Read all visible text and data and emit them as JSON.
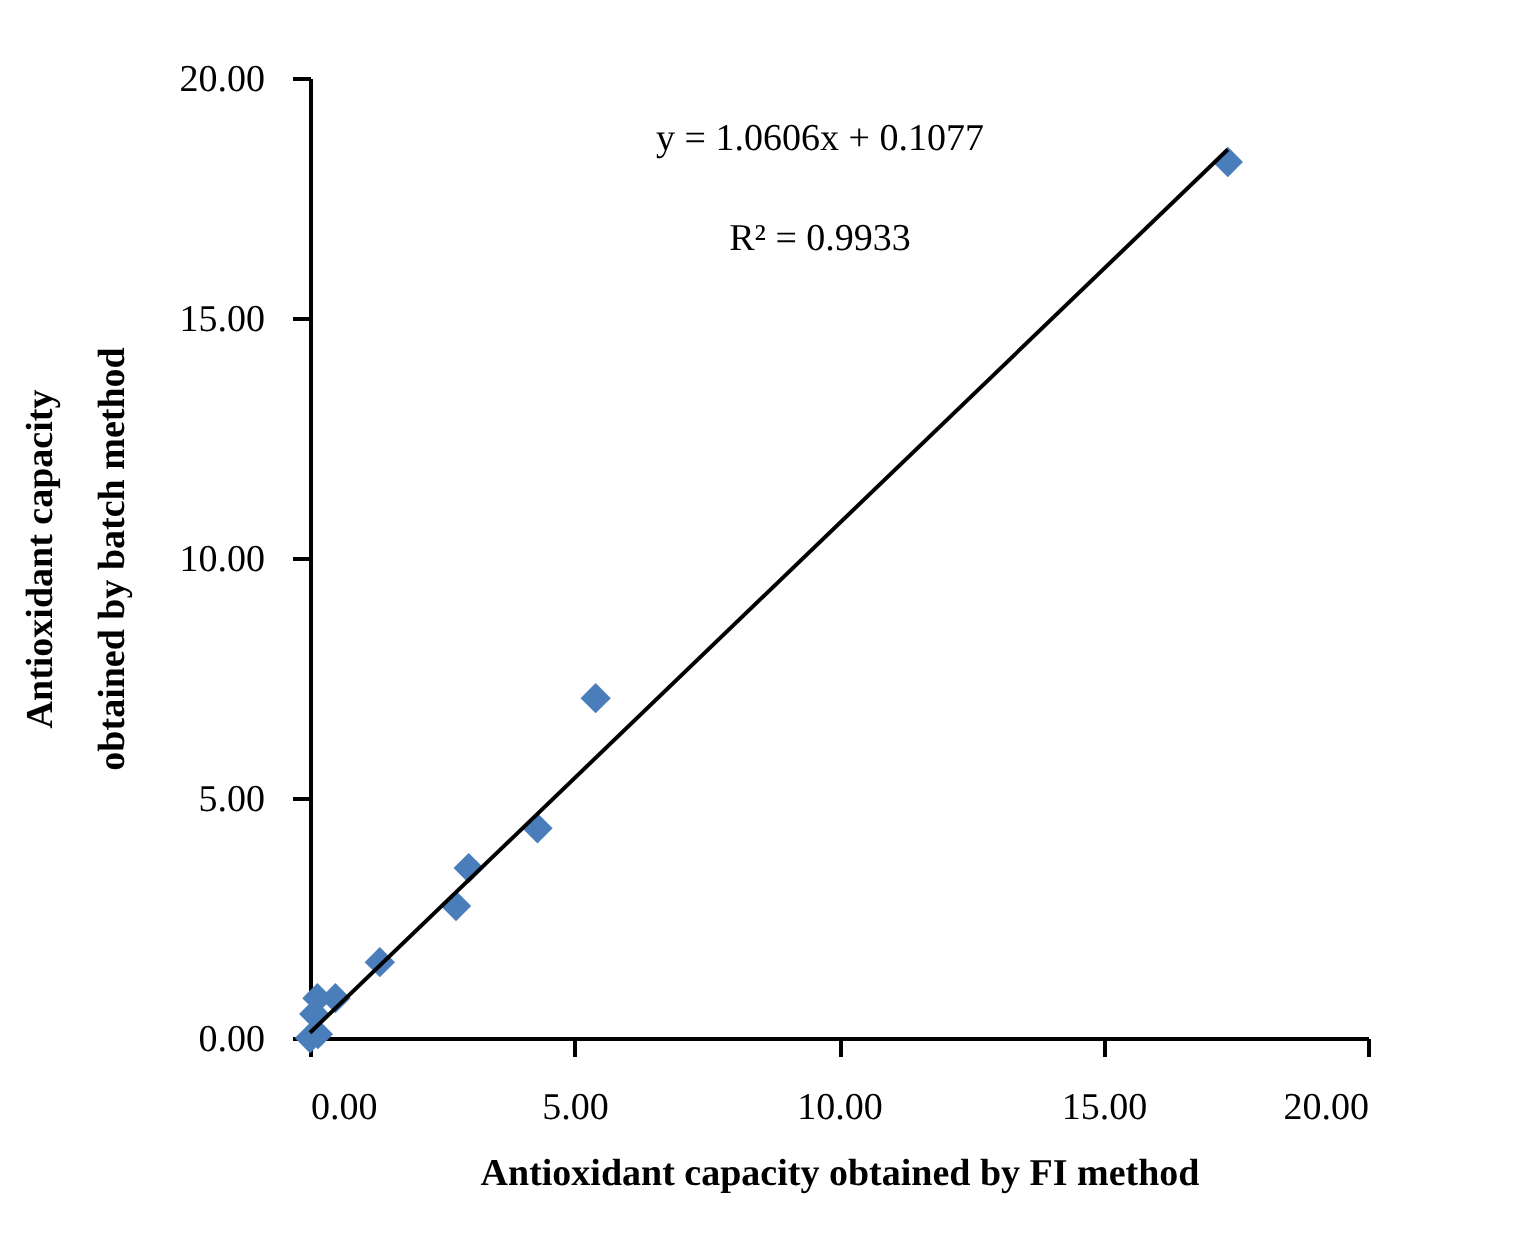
{
  "chart_data": {
    "type": "scatter",
    "xlabel": "Antioxidant capacity obtained by FI method",
    "ylabel": "Antioxidant capacity\nobtained by batch method",
    "annotations": [
      "y = 1.0606x + 0.1077",
      "R² = 0.9933"
    ],
    "xlim": [
      0,
      20
    ],
    "ylim": [
      0,
      20
    ],
    "xticks": [
      {
        "value": 0,
        "label": "0.00"
      },
      {
        "value": 5,
        "label": "5.00"
      },
      {
        "value": 10,
        "label": "10.00"
      },
      {
        "value": 15,
        "label": "15.00"
      },
      {
        "value": 20,
        "label": "20.00"
      }
    ],
    "yticks": [
      {
        "value": 0,
        "label": "0.00"
      },
      {
        "value": 5,
        "label": "5.00"
      },
      {
        "value": 10,
        "label": "10.00"
      },
      {
        "value": 15,
        "label": "15.00"
      },
      {
        "value": 20,
        "label": "20.00"
      }
    ],
    "grid": false,
    "series": [
      {
        "marker": "diamond",
        "color": "#4a7ebb",
        "x": [
          17.35,
          5.4,
          4.3,
          3.0,
          2.76,
          1.32,
          0.48,
          0.14,
          0.08,
          0.15,
          0.0
        ],
        "values": [
          18.25,
          7.08,
          4.37,
          3.54,
          2.75,
          1.58,
          0.83,
          0.83,
          0.5,
          0.08,
          0.0
        ]
      },
      {
        "type": "line",
        "color": "#000000",
        "x": [
          0,
          17.35
        ],
        "values": [
          0.11,
          18.51
        ]
      }
    ]
  }
}
